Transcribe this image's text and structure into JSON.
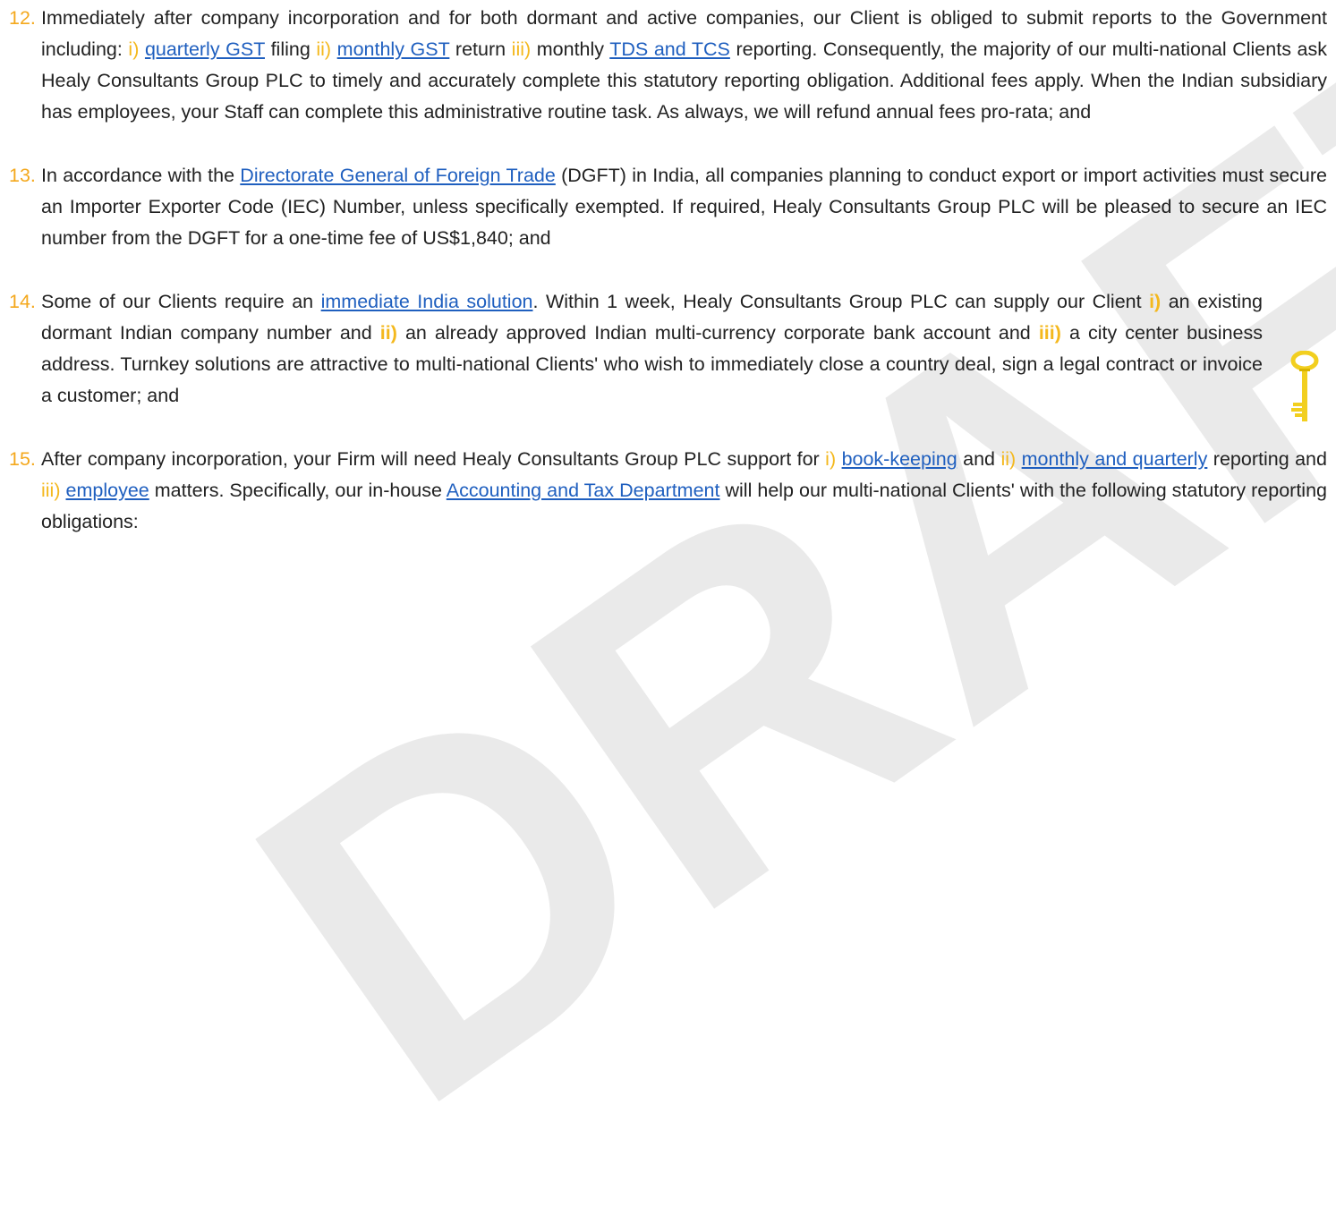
{
  "watermark": "DRAFT",
  "items": [
    {
      "number": "12.",
      "segments": [
        {
          "text": "Immediately after company incorporation and for both dormant and active companies, our Client is obliged to submit reports to the Government including: ",
          "style": "plain"
        },
        {
          "text": "i) ",
          "style": "marker"
        },
        {
          "text": "quarterly GST",
          "style": "link"
        },
        {
          "text": " filing ",
          "style": "plain"
        },
        {
          "text": "ii) ",
          "style": "marker"
        },
        {
          "text": "monthly GST",
          "style": "link"
        },
        {
          "text": " return ",
          "style": "plain"
        },
        {
          "text": "iii)",
          "style": "marker"
        },
        {
          "text": " monthly ",
          "style": "plain"
        },
        {
          "text": "TDS and TCS",
          "style": "link"
        },
        {
          "text": " reporting. Consequently, the majority of our multi-national Clients ask Healy Consultants Group PLC to timely and accurately complete this statutory reporting obligation. Additional fees apply. When the Indian subsidiary has employees, your Staff can complete this administrative routine task. As always, we will refund annual fees pro-rata; and",
          "style": "plain"
        }
      ]
    },
    {
      "number": "13.",
      "segments": [
        {
          "text": "In accordance with the ",
          "style": "plain"
        },
        {
          "text": "Directorate General of Foreign Trade",
          "style": "link"
        },
        {
          "text": " (DGFT) in India, all companies planning to conduct export or import activities must secure an Importer Exporter Code (IEC) Number, unless specifically exempted. If required, Healy Consultants Group PLC will be pleased to secure an IEC number from the DGFT for a one-time fee of US$1,840; and",
          "style": "plain"
        }
      ]
    },
    {
      "number": "14.",
      "narrow": true,
      "segments": [
        {
          "text": "Some of our Clients require an ",
          "style": "plain"
        },
        {
          "text": "immediate India solution",
          "style": "link"
        },
        {
          "text": ". Within 1 week, Healy Consultants Group PLC can supply our Client ",
          "style": "plain"
        },
        {
          "text": "i) ",
          "style": "bold-marker"
        },
        {
          "text": "an existing dormant Indian company number and ",
          "style": "plain"
        },
        {
          "text": "ii) ",
          "style": "bold-marker"
        },
        {
          "text": "an already approved Indian multi-currency corporate bank account and ",
          "style": "plain"
        },
        {
          "text": "iii) ",
          "style": "bold-marker"
        },
        {
          "text": "a city center business address. Turnkey solutions are attractive to multi-national Clients' who wish to immediately close a country deal, sign a legal contract or invoice a customer; and",
          "style": "plain"
        }
      ]
    },
    {
      "number": "15.",
      "segments": [
        {
          "text": "After company incorporation, your Firm will need Healy Consultants Group PLC support for ",
          "style": "plain"
        },
        {
          "text": "i) ",
          "style": "marker"
        },
        {
          "text": "book-keeping",
          "style": "link"
        },
        {
          "text": " and ",
          "style": "plain"
        },
        {
          "text": "ii) ",
          "style": "marker"
        },
        {
          "text": "monthly and quarterly",
          "style": "link"
        },
        {
          "text": " reporting and ",
          "style": "plain"
        },
        {
          "text": "iii) ",
          "style": "marker"
        },
        {
          "text": "employee",
          "style": "link"
        },
        {
          "text": " matters. Specifically, our in-house ",
          "style": "plain"
        },
        {
          "text": "Accounting and Tax Department",
          "style": "link"
        },
        {
          "text": " will help our multi-national Clients' with the following statutory reporting obligations:",
          "style": "plain"
        }
      ]
    }
  ]
}
